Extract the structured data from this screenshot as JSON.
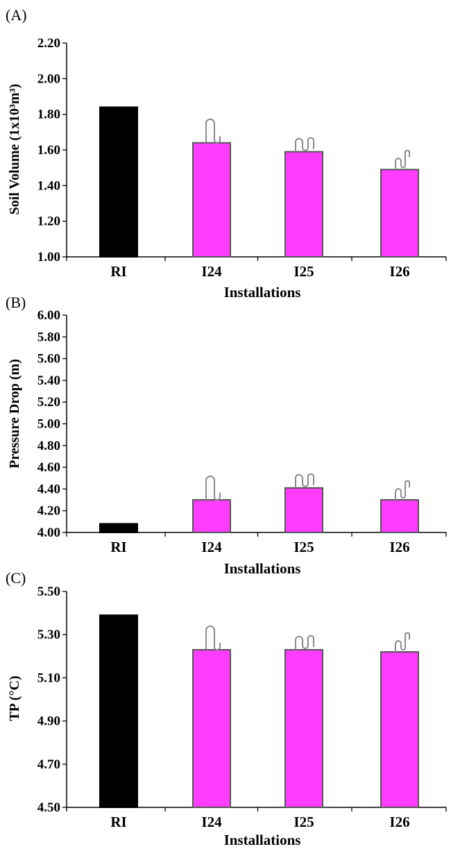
{
  "colors": {
    "reference": "#000000",
    "installation": "#ff3cff",
    "outline": "#555555",
    "icon": "#8a8a8a"
  },
  "chart_data": [
    {
      "type": "bar",
      "panel_label": "(A)",
      "categories": [
        "RI",
        "I24",
        "I25",
        "I26"
      ],
      "values": [
        1.84,
        1.64,
        1.59,
        1.49
      ],
      "icons": [
        "",
        "loop-icon",
        "double-loop-icon",
        "spring-loop-icon"
      ],
      "ylabel": "Soil Volume (1x10³m³)",
      "xlabel": "Installations",
      "ylim": [
        1.0,
        2.2
      ],
      "yticks": [
        "1.00",
        "1.20",
        "1.40",
        "1.60",
        "1.80",
        "2.00",
        "2.20"
      ],
      "grid": false,
      "legend": "none"
    },
    {
      "type": "bar",
      "panel_label": "(B)",
      "categories": [
        "RI",
        "I24",
        "I25",
        "I26"
      ],
      "values": [
        4.08,
        4.3,
        4.41,
        4.3
      ],
      "icons": [
        "",
        "loop-icon",
        "double-loop-icon",
        "spring-loop-icon"
      ],
      "ylabel": "Pressure Drop (m)",
      "xlabel": "Installations",
      "ylim": [
        4.0,
        6.0
      ],
      "yticks": [
        "4.00",
        "4.20",
        "4.40",
        "4.60",
        "4.80",
        "5.00",
        "5.20",
        "5.40",
        "5.60",
        "5.80",
        "6.00"
      ],
      "grid": false,
      "legend": "none"
    },
    {
      "type": "bar",
      "panel_label": "(C)",
      "categories": [
        "RI",
        "I24",
        "I25",
        "I26"
      ],
      "values": [
        5.39,
        5.23,
        5.23,
        5.22
      ],
      "icons": [
        "",
        "loop-icon",
        "double-loop-icon",
        "spring-loop-icon"
      ],
      "ylabel": "TP (°C)",
      "xlabel": "Installations",
      "ylim": [
        4.5,
        5.5
      ],
      "yticks": [
        "4.50",
        "4.70",
        "4.90",
        "5.10",
        "5.30",
        "5.50"
      ],
      "grid": false,
      "legend": "none"
    }
  ]
}
